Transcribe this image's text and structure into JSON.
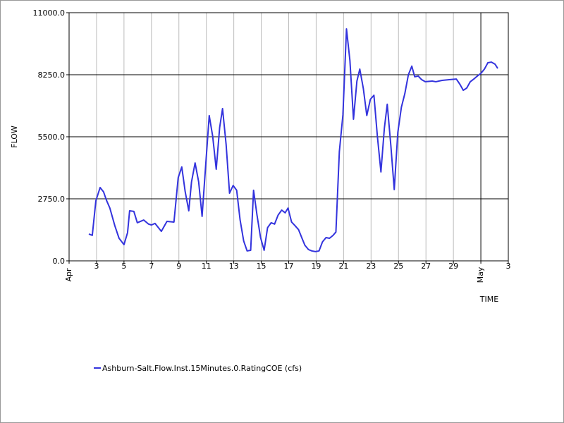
{
  "chart_data": {
    "type": "line",
    "y_label": "FLOW",
    "x_label": "TIME",
    "xlim": [
      1,
      33
    ],
    "xticks": [
      {
        "value": 1,
        "label": "Apr"
      },
      3,
      5,
      7,
      9,
      11,
      13,
      15,
      17,
      19,
      21,
      23,
      25,
      27,
      29,
      {
        "value": 31,
        "label": "May"
      },
      {
        "value": 33,
        "label": "3"
      }
    ],
    "ylim": [
      0,
      11000
    ],
    "yticks": [
      {
        "value": 0,
        "label": "0.0"
      },
      {
        "value": 2750,
        "label": "2750.0"
      },
      {
        "value": 5500,
        "label": "5500.0"
      },
      {
        "value": 8250,
        "label": "8250.0"
      },
      {
        "value": 11000,
        "label": "11000.0"
      }
    ],
    "grid": true,
    "legend": "bottom-left",
    "series": [
      {
        "name": "Ashburn-Salt.Flow.Inst.15Minutes.0.RatingCOE (cfs)",
        "color": "#3333dd",
        "x": [
          2.44,
          2.69,
          2.95,
          3.26,
          3.51,
          3.72,
          3.97,
          4.33,
          4.64,
          5.0,
          5.26,
          5.41,
          5.72,
          5.97,
          6.44,
          6.79,
          7.0,
          7.26,
          7.72,
          8.13,
          8.64,
          8.95,
          9.21,
          9.46,
          9.72,
          9.92,
          10.18,
          10.44,
          10.69,
          10.95,
          11.21,
          11.46,
          11.72,
          11.97,
          12.18,
          12.44,
          12.69,
          12.95,
          13.21,
          13.46,
          13.72,
          13.97,
          14.23,
          14.44,
          14.69,
          14.95,
          15.21,
          15.46,
          15.72,
          15.97,
          16.23,
          16.49,
          16.74,
          16.95,
          17.21,
          17.46,
          17.72,
          17.97,
          18.18,
          18.44,
          18.69,
          18.95,
          19.21,
          19.46,
          19.72,
          19.97,
          20.23,
          20.44,
          20.69,
          20.95,
          21.21,
          21.46,
          21.72,
          21.97,
          22.18,
          22.44,
          22.69,
          22.95,
          23.21,
          23.46,
          23.72,
          23.97,
          24.18,
          24.44,
          24.69,
          24.95,
          25.21,
          25.46,
          25.72,
          25.97,
          26.18,
          26.44,
          26.69,
          26.95,
          27.46,
          27.72,
          28.18,
          28.69,
          29.21,
          29.46,
          29.72,
          29.97,
          30.23,
          30.49,
          30.74,
          31.0,
          31.26,
          31.51,
          31.77,
          32.03,
          32.23
        ],
        "values": [
          1190,
          1130,
          2660,
          3250,
          3060,
          2690,
          2340,
          1560,
          1000,
          720,
          1250,
          2220,
          2190,
          1690,
          1810,
          1630,
          1590,
          1660,
          1310,
          1750,
          1720,
          3690,
          4160,
          3060,
          2220,
          3500,
          4340,
          3500,
          1970,
          4220,
          6440,
          5530,
          4060,
          5910,
          6750,
          5160,
          3000,
          3340,
          3130,
          1810,
          880,
          440,
          470,
          3130,
          2030,
          1030,
          470,
          1470,
          1690,
          1630,
          2030,
          2250,
          2130,
          2340,
          1720,
          1560,
          1380,
          1000,
          690,
          500,
          440,
          410,
          440,
          840,
          1030,
          1000,
          1130,
          1280,
          4840,
          6470,
          10280,
          8880,
          6280,
          7970,
          8500,
          7630,
          6440,
          7160,
          7340,
          5530,
          3940,
          5880,
          6940,
          5130,
          3160,
          5690,
          6810,
          7410,
          8250,
          8630,
          8160,
          8190,
          8030,
          7940,
          7970,
          7940,
          8000,
          8030,
          8060,
          7840,
          7560,
          7660,
          7940,
          8060,
          8190,
          8310,
          8500,
          8780,
          8810,
          8720,
          8530
        ]
      }
    ]
  }
}
